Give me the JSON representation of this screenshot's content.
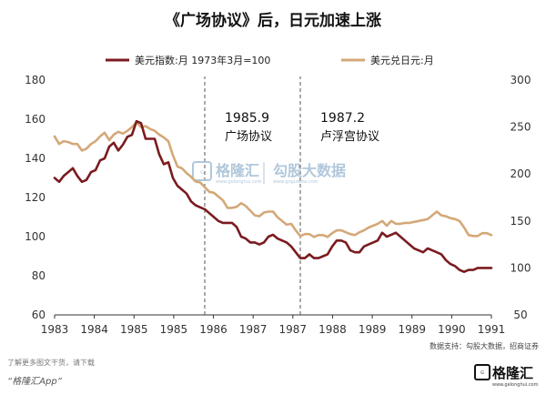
{
  "chart_data": {
    "type": "line",
    "title": "《广场协议》后，日元加速上涨",
    "x_ticks": [
      "1983",
      "1984",
      "1985",
      "1985",
      "1986",
      "1987",
      "1987",
      "1988",
      "1989",
      "1989",
      "1990",
      "1991"
    ],
    "y_left": {
      "min": 60,
      "max": 180,
      "ticks": [
        60,
        80,
        100,
        120,
        140,
        160,
        180
      ]
    },
    "y_right": {
      "min": 50,
      "max": 300,
      "ticks": [
        50,
        100,
        150,
        200,
        250,
        300
      ]
    },
    "grid": false,
    "legend_position": "top",
    "x_range": [
      1983.0,
      1991.0
    ],
    "series": [
      {
        "name": "美元指数:月 1973年3月=100",
        "axis": "left",
        "color": "#7a1b1f",
        "x": [
          1983.0,
          1983.083,
          1983.167,
          1983.25,
          1983.333,
          1983.417,
          1983.5,
          1983.583,
          1983.667,
          1983.75,
          1983.833,
          1983.917,
          1984.0,
          1984.083,
          1984.167,
          1984.25,
          1984.333,
          1984.417,
          1984.5,
          1984.583,
          1984.667,
          1984.75,
          1984.833,
          1984.917,
          1985.0,
          1985.083,
          1985.167,
          1985.25,
          1985.333,
          1985.417,
          1985.5,
          1985.583,
          1985.667,
          1985.75,
          1985.833,
          1985.917,
          1986.0,
          1986.083,
          1986.167,
          1986.25,
          1986.333,
          1986.417,
          1986.5,
          1986.583,
          1986.667,
          1986.75,
          1986.833,
          1986.917,
          1987.0,
          1987.083,
          1987.167,
          1987.25,
          1987.333,
          1987.417,
          1987.5,
          1987.583,
          1987.667,
          1987.75,
          1987.833,
          1987.917,
          1988.0,
          1988.083,
          1988.167,
          1988.25,
          1988.333,
          1988.417,
          1988.5,
          1988.583,
          1988.667,
          1988.75,
          1988.833,
          1988.917,
          1989.0,
          1989.083,
          1989.167,
          1989.25,
          1989.333,
          1989.417,
          1989.5,
          1989.583,
          1989.667,
          1989.75,
          1989.833,
          1989.917,
          1990.0,
          1990.083,
          1990.167,
          1990.25,
          1990.333,
          1990.417,
          1990.5,
          1990.583,
          1990.667,
          1990.75,
          1990.833,
          1990.917,
          1991.0
        ],
        "values": [
          130,
          128,
          131,
          133,
          135,
          131,
          128,
          129,
          133,
          134,
          139,
          140,
          146,
          148,
          144,
          147,
          151,
          152,
          159,
          158,
          150,
          150,
          150,
          142,
          137,
          138,
          130,
          126,
          124,
          122,
          118,
          116,
          115,
          114,
          112,
          110,
          108,
          107,
          107,
          107,
          105,
          100,
          99,
          97,
          97,
          96,
          97,
          100,
          101,
          99,
          98,
          97,
          95,
          92,
          89,
          89,
          91,
          89,
          89,
          90,
          91,
          95,
          98,
          98,
          97,
          93,
          92,
          92,
          95,
          96,
          97,
          98,
          102,
          100,
          101,
          102,
          100,
          98,
          96,
          94,
          93,
          92,
          94,
          93,
          92,
          91,
          88,
          86,
          85,
          83,
          82,
          83,
          83,
          84,
          84,
          84,
          84
        ]
      },
      {
        "name": "美元兑日元:月",
        "axis": "right",
        "color": "#d4a878",
        "x": [
          1983.0,
          1983.083,
          1983.167,
          1983.25,
          1983.333,
          1983.417,
          1983.5,
          1983.583,
          1983.667,
          1983.75,
          1983.833,
          1983.917,
          1984.0,
          1984.083,
          1984.167,
          1984.25,
          1984.333,
          1984.417,
          1984.5,
          1984.583,
          1984.667,
          1984.75,
          1984.833,
          1984.917,
          1985.0,
          1985.083,
          1985.167,
          1985.25,
          1985.333,
          1985.417,
          1985.5,
          1985.583,
          1985.667,
          1985.75,
          1985.833,
          1985.917,
          1986.0,
          1986.083,
          1986.167,
          1986.25,
          1986.333,
          1986.417,
          1986.5,
          1986.583,
          1986.667,
          1986.75,
          1986.833,
          1986.917,
          1987.0,
          1987.083,
          1987.167,
          1987.25,
          1987.333,
          1987.417,
          1987.5,
          1987.583,
          1987.667,
          1987.75,
          1987.833,
          1987.917,
          1988.0,
          1988.083,
          1988.167,
          1988.25,
          1988.333,
          1988.417,
          1988.5,
          1988.583,
          1988.667,
          1988.75,
          1988.833,
          1988.917,
          1989.0,
          1989.083,
          1989.167,
          1989.25,
          1989.333,
          1989.417,
          1989.5,
          1989.583,
          1989.667,
          1989.75,
          1989.833,
          1989.917,
          1990.0,
          1990.083,
          1990.167,
          1990.25,
          1990.333,
          1990.417,
          1990.5,
          1990.583,
          1990.667,
          1990.75,
          1990.833,
          1990.917,
          1991.0
        ],
        "values": [
          240,
          232,
          235,
          234,
          232,
          232,
          225,
          227,
          232,
          235,
          240,
          244,
          236,
          242,
          245,
          243,
          246,
          250,
          255,
          250,
          251,
          248,
          246,
          242,
          239,
          235,
          220,
          208,
          206,
          201,
          197,
          192,
          191,
          186,
          181,
          180,
          176,
          172,
          164,
          164,
          165,
          169,
          166,
          161,
          156,
          155,
          159,
          160,
          160,
          154,
          150,
          146,
          147,
          140,
          134,
          136,
          136,
          133,
          135,
          135,
          133,
          137,
          140,
          140,
          138,
          136,
          135,
          138,
          140,
          143,
          145,
          147,
          150,
          145,
          150,
          147,
          147,
          148,
          148,
          149,
          150,
          151,
          152,
          156,
          160,
          156,
          155,
          153,
          152,
          150,
          143,
          135,
          134,
          134,
          137,
          137,
          135
        ]
      }
    ],
    "annotations": [
      {
        "x": 1985.75,
        "year_label": "1985.9",
        "event": "广场协议"
      },
      {
        "x": 1987.5,
        "year_label": "1987.2",
        "event": "卢浮宫协议"
      }
    ],
    "source": "数据支持：勾股大数据，招商证券"
  },
  "watermark": {
    "brand": "格隆汇",
    "site": "勾股大数据",
    "brand_url": "www.gelonghui.com",
    "site_url": "www.gogudata.com"
  },
  "footer": {
    "note": "了解更多图文干货，请下载",
    "app": "“格隆汇App”",
    "logo": "格隆汇",
    "logo_url": "www.gelonghui.com"
  }
}
